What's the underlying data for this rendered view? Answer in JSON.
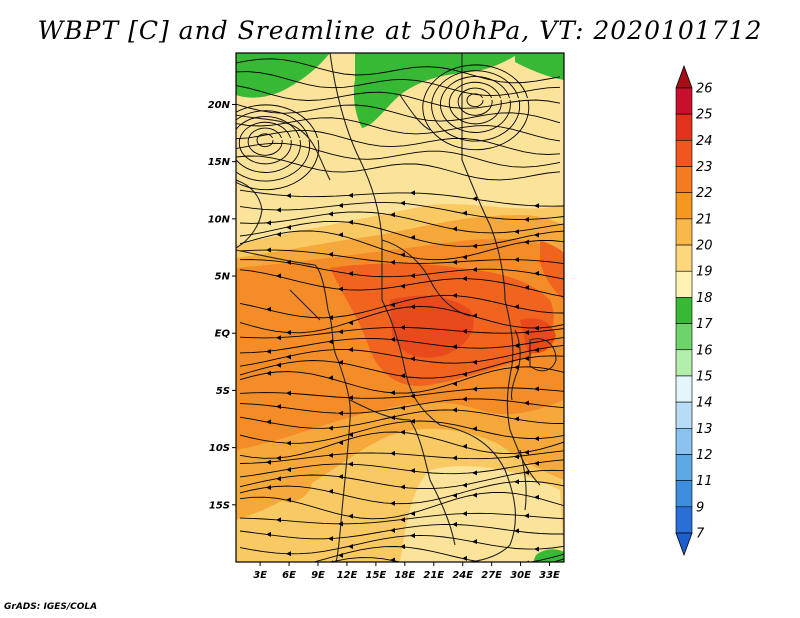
{
  "title": "WBPT [C] and Sreamline at 500hPa, VT: 2020101712",
  "credit": "GrADS: IGES/COLA",
  "map": {
    "lat_labels": [
      {
        "lat": 20,
        "label": "20N"
      },
      {
        "lat": 15,
        "label": "15N"
      },
      {
        "lat": 10,
        "label": "10N"
      },
      {
        "lat": 5,
        "label": "5N"
      },
      {
        "lat": 0,
        "label": "EQ"
      },
      {
        "lat": -5,
        "label": "5S"
      },
      {
        "lat": -10,
        "label": "10S"
      },
      {
        "lat": -15,
        "label": "15S"
      }
    ],
    "lon_labels": [
      {
        "lon": 3,
        "label": "3E"
      },
      {
        "lon": 6,
        "label": "6E"
      },
      {
        "lon": 9,
        "label": "9E"
      },
      {
        "lon": 12,
        "label": "12E"
      },
      {
        "lon": 15,
        "label": "15E"
      },
      {
        "lon": 18,
        "label": "18E"
      },
      {
        "lon": 21,
        "label": "21E"
      },
      {
        "lon": 24,
        "label": "24E"
      },
      {
        "lon": 27,
        "label": "27E"
      },
      {
        "lon": 30,
        "label": "30E"
      },
      {
        "lon": 33,
        "label": "33E"
      }
    ],
    "lon_range": [
      0.5,
      34.5
    ],
    "lat_range": [
      -20,
      24.5
    ]
  },
  "colorbar": {
    "levels": [
      {
        "label": "26",
        "color": "#a50f15"
      },
      {
        "label": "25",
        "color": "#c8102e"
      },
      {
        "label": "24",
        "color": "#e2321e"
      },
      {
        "label": "23",
        "color": "#f0561d"
      },
      {
        "label": "22",
        "color": "#f47b20"
      },
      {
        "label": "21",
        "color": "#f6981f"
      },
      {
        "label": "20",
        "color": "#f9b84a"
      },
      {
        "label": "19",
        "color": "#fcd77c"
      },
      {
        "label": "18",
        "color": "#fef3b5"
      },
      {
        "label": "17",
        "color": "#37b935"
      },
      {
        "label": "16",
        "color": "#6dd46a"
      },
      {
        "label": "15",
        "color": "#b4eeac"
      },
      {
        "label": "14",
        "color": "#e3f6fc"
      },
      {
        "label": "13",
        "color": "#b8dcf6"
      },
      {
        "label": "12",
        "color": "#8cc3ee"
      },
      {
        "label": "11",
        "color": "#5ea8e6"
      },
      {
        "label": "9",
        "color": "#3d8ede"
      },
      {
        "label": "7",
        "color": "#2a6fd6"
      }
    ],
    "bottom_color": "#1c5fd1",
    "top_color": "#a50f15"
  }
}
